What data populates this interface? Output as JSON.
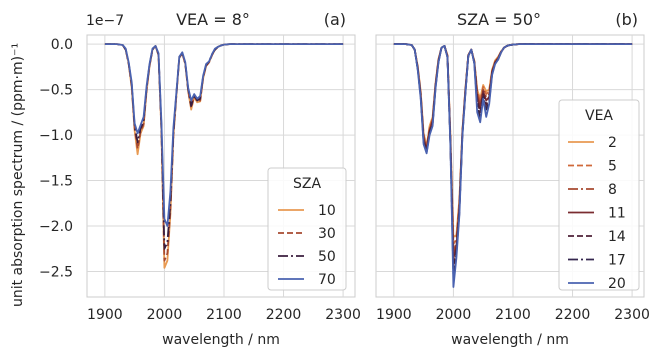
{
  "figure": {
    "ylabel": "unit absorption spectrum / (ppm·m)⁻¹",
    "offset_text": "1e−7"
  },
  "chart_data": [
    {
      "type": "line",
      "panel_tag": "(a)",
      "title": "VEA = 8°",
      "xlabel": "wavelength / nm",
      "xlim": [
        1870,
        2320
      ],
      "ylim": [
        -2.78,
        0.1
      ],
      "xticks": [
        1900,
        2000,
        2100,
        2200,
        2300
      ],
      "yticks": [
        0.0,
        -0.5,
        -1.0,
        -1.5,
        -2.0,
        -2.5
      ],
      "ytick_labels": [
        "0.0",
        "−0.5",
        "−1.0",
        "−1.5",
        "−2.0",
        "−2.5"
      ],
      "y_multiplier": "1e−7",
      "grid": true,
      "legend": {
        "title": "SZA",
        "position": "lower-right"
      },
      "x": [
        1900,
        1910,
        1920,
        1930,
        1935,
        1940,
        1945,
        1950,
        1955,
        1960,
        1965,
        1970,
        1975,
        1980,
        1985,
        1990,
        1995,
        2000,
        2005,
        2010,
        2015,
        2020,
        2025,
        2030,
        2035,
        2040,
        2045,
        2050,
        2055,
        2060,
        2065,
        2070,
        2075,
        2080,
        2085,
        2090,
        2095,
        2100,
        2110,
        2120,
        2150,
        2200,
        2250,
        2300
      ],
      "series": [
        {
          "name": "10",
          "color": "#e89a52",
          "dash": "",
          "values": [
            0,
            0,
            0,
            -0.01,
            -0.06,
            -0.22,
            -0.48,
            -0.95,
            -1.21,
            -0.98,
            -0.9,
            -0.52,
            -0.25,
            -0.06,
            -0.02,
            -0.12,
            -0.95,
            -2.46,
            -2.38,
            -1.87,
            -1.02,
            -0.58,
            -0.15,
            -0.1,
            -0.22,
            -0.52,
            -0.72,
            -0.58,
            -0.64,
            -0.63,
            -0.38,
            -0.24,
            -0.2,
            -0.12,
            -0.06,
            -0.03,
            -0.015,
            -0.005,
            0,
            0,
            0,
            0,
            0,
            0
          ]
        },
        {
          "name": "30",
          "color": "#a84a30",
          "dash": "6,3",
          "values": [
            0,
            0,
            0,
            -0.01,
            -0.06,
            -0.22,
            -0.46,
            -0.92,
            -1.15,
            -0.96,
            -0.88,
            -0.5,
            -0.24,
            -0.06,
            -0.02,
            -0.12,
            -0.93,
            -2.38,
            -2.3,
            -1.83,
            -1.0,
            -0.57,
            -0.15,
            -0.1,
            -0.22,
            -0.51,
            -0.7,
            -0.57,
            -0.63,
            -0.62,
            -0.37,
            -0.24,
            -0.2,
            -0.12,
            -0.06,
            -0.03,
            -0.015,
            -0.005,
            0,
            0,
            0,
            0,
            0,
            0
          ]
        },
        {
          "name": "50",
          "color": "#3b1e3e",
          "dash": "10,3,2,3",
          "values": [
            0,
            0,
            0,
            -0.01,
            -0.06,
            -0.21,
            -0.44,
            -0.9,
            -1.08,
            -0.93,
            -0.85,
            -0.48,
            -0.23,
            -0.06,
            -0.02,
            -0.11,
            -0.9,
            -2.25,
            -2.18,
            -1.75,
            -0.97,
            -0.56,
            -0.14,
            -0.1,
            -0.21,
            -0.5,
            -0.68,
            -0.56,
            -0.62,
            -0.6,
            -0.36,
            -0.23,
            -0.19,
            -0.11,
            -0.06,
            -0.03,
            -0.015,
            -0.005,
            0,
            0,
            0,
            0,
            0,
            0
          ]
        },
        {
          "name": "70",
          "color": "#4a62b0",
          "dash": "",
          "values": [
            0,
            0,
            0,
            -0.01,
            -0.05,
            -0.2,
            -0.42,
            -0.87,
            -0.98,
            -0.89,
            -0.8,
            -0.46,
            -0.22,
            -0.05,
            -0.02,
            -0.1,
            -0.85,
            -1.92,
            -2.0,
            -1.62,
            -0.92,
            -0.54,
            -0.14,
            -0.09,
            -0.2,
            -0.48,
            -0.62,
            -0.55,
            -0.6,
            -0.57,
            -0.35,
            -0.22,
            -0.19,
            -0.11,
            -0.05,
            -0.03,
            -0.015,
            -0.005,
            0,
            0,
            0,
            0,
            0,
            0
          ]
        }
      ]
    },
    {
      "type": "line",
      "panel_tag": "(b)",
      "title": "SZA = 50°",
      "xlabel": "wavelength / nm",
      "xlim": [
        1870,
        2320
      ],
      "ylim": [
        -2.78,
        0.1
      ],
      "xticks": [
        1900,
        2000,
        2100,
        2200,
        2300
      ],
      "grid": true,
      "legend": {
        "title": "VEA",
        "position": "right"
      },
      "x": [
        1900,
        1910,
        1920,
        1930,
        1935,
        1940,
        1945,
        1950,
        1955,
        1960,
        1965,
        1970,
        1975,
        1980,
        1985,
        1990,
        1995,
        2000,
        2005,
        2010,
        2015,
        2020,
        2025,
        2030,
        2035,
        2040,
        2045,
        2050,
        2055,
        2060,
        2065,
        2070,
        2075,
        2080,
        2085,
        2090,
        2095,
        2100,
        2110,
        2120,
        2150,
        2200,
        2250,
        2300
      ],
      "series": [
        {
          "name": "2",
          "color": "#e89a52",
          "dash": "",
          "values": [
            0,
            0,
            0,
            -0.01,
            -0.06,
            -0.24,
            -0.52,
            -0.98,
            -1.12,
            -0.9,
            -0.8,
            -0.42,
            -0.16,
            -0.04,
            -0.02,
            -0.12,
            -1.0,
            -2.12,
            -2.1,
            -1.7,
            -0.95,
            -0.5,
            -0.12,
            -0.06,
            -0.18,
            -0.5,
            -0.6,
            -0.45,
            -0.52,
            -0.5,
            -0.28,
            -0.18,
            -0.14,
            -0.08,
            -0.04,
            -0.02,
            -0.01,
            -0.005,
            0,
            0,
            0,
            0,
            0,
            0
          ]
        },
        {
          "name": "5",
          "color": "#d0693a",
          "dash": "6,3",
          "values": [
            0,
            0,
            0,
            -0.01,
            -0.06,
            -0.25,
            -0.54,
            -1.0,
            -1.13,
            -0.92,
            -0.82,
            -0.43,
            -0.17,
            -0.04,
            -0.02,
            -0.13,
            -1.02,
            -2.2,
            -2.14,
            -1.73,
            -0.96,
            -0.51,
            -0.12,
            -0.06,
            -0.19,
            -0.52,
            -0.63,
            -0.47,
            -0.55,
            -0.52,
            -0.29,
            -0.19,
            -0.15,
            -0.08,
            -0.04,
            -0.02,
            -0.01,
            -0.005,
            0,
            0,
            0,
            0,
            0,
            0
          ]
        },
        {
          "name": "8",
          "color": "#a84a30",
          "dash": "10,3,2,3",
          "values": [
            0,
            0,
            0,
            -0.01,
            -0.06,
            -0.26,
            -0.55,
            -1.02,
            -1.15,
            -0.94,
            -0.84,
            -0.44,
            -0.18,
            -0.04,
            -0.02,
            -0.13,
            -1.04,
            -2.28,
            -2.18,
            -1.76,
            -0.97,
            -0.52,
            -0.12,
            -0.06,
            -0.19,
            -0.55,
            -0.66,
            -0.5,
            -0.58,
            -0.55,
            -0.3,
            -0.2,
            -0.15,
            -0.08,
            -0.04,
            -0.02,
            -0.01,
            -0.005,
            0,
            0,
            0,
            0,
            0,
            0
          ]
        },
        {
          "name": "11",
          "color": "#7a2c30",
          "dash": "",
          "values": [
            0,
            0,
            0,
            -0.01,
            -0.06,
            -0.26,
            -0.56,
            -1.04,
            -1.16,
            -0.95,
            -0.85,
            -0.45,
            -0.18,
            -0.04,
            -0.02,
            -0.14,
            -1.06,
            -2.36,
            -2.22,
            -1.79,
            -0.98,
            -0.53,
            -0.13,
            -0.06,
            -0.2,
            -0.58,
            -0.7,
            -0.52,
            -0.62,
            -0.58,
            -0.31,
            -0.2,
            -0.16,
            -0.09,
            -0.04,
            -0.02,
            -0.01,
            -0.005,
            0,
            0,
            0,
            0,
            0,
            0
          ]
        },
        {
          "name": "14",
          "color": "#4e2038",
          "dash": "6,3",
          "values": [
            0,
            0,
            0,
            -0.01,
            -0.06,
            -0.27,
            -0.57,
            -1.06,
            -1.18,
            -0.97,
            -0.87,
            -0.46,
            -0.19,
            -0.04,
            -0.02,
            -0.14,
            -1.08,
            -2.45,
            -2.26,
            -1.82,
            -0.99,
            -0.54,
            -0.13,
            -0.06,
            -0.2,
            -0.62,
            -0.75,
            -0.55,
            -0.67,
            -0.6,
            -0.32,
            -0.21,
            -0.16,
            -0.09,
            -0.04,
            -0.02,
            -0.01,
            -0.005,
            0,
            0,
            0,
            0,
            0,
            0
          ]
        },
        {
          "name": "17",
          "color": "#34264e",
          "dash": "10,3,2,3",
          "values": [
            0,
            0,
            0,
            -0.01,
            -0.06,
            -0.27,
            -0.58,
            -1.08,
            -1.19,
            -0.98,
            -0.88,
            -0.47,
            -0.19,
            -0.04,
            -0.02,
            -0.15,
            -1.1,
            -2.55,
            -2.3,
            -1.85,
            -1.0,
            -0.55,
            -0.13,
            -0.06,
            -0.21,
            -0.68,
            -0.8,
            -0.58,
            -0.72,
            -0.63,
            -0.33,
            -0.21,
            -0.17,
            -0.09,
            -0.04,
            -0.02,
            -0.01,
            -0.005,
            0,
            0,
            0,
            0,
            0,
            0
          ]
        },
        {
          "name": "20",
          "color": "#4a62b0",
          "dash": "",
          "values": [
            0,
            0,
            0,
            -0.01,
            -0.06,
            -0.28,
            -0.6,
            -1.1,
            -1.2,
            -1.0,
            -0.9,
            -0.48,
            -0.2,
            -0.04,
            -0.02,
            -0.15,
            -1.12,
            -2.67,
            -2.35,
            -1.88,
            -1.01,
            -0.56,
            -0.13,
            -0.06,
            -0.21,
            -0.75,
            -0.86,
            -0.6,
            -0.8,
            -0.66,
            -0.34,
            -0.22,
            -0.17,
            -0.09,
            -0.04,
            -0.02,
            -0.01,
            -0.005,
            0,
            0,
            0,
            0,
            0,
            0
          ]
        }
      ]
    }
  ]
}
